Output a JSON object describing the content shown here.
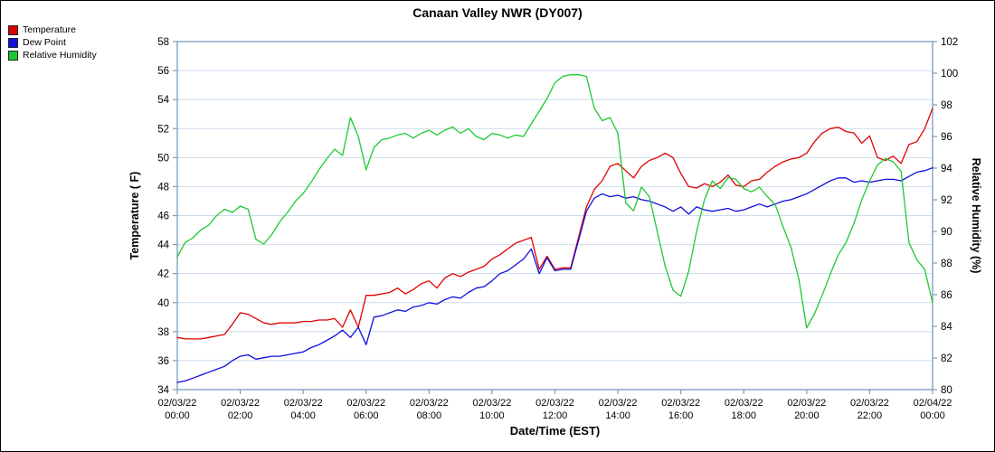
{
  "title": "Canaan Valley NWR (DY007)",
  "legend": [
    {
      "label": "Temperature",
      "color": "#e00000"
    },
    {
      "label": "Dew Point",
      "color": "#0f0fdd"
    },
    {
      "label": "Relative Humidity",
      "color": "#1ec832"
    }
  ],
  "chart_data": {
    "type": "line",
    "title": "Canaan Valley NWR (DY007)",
    "xlabel": "Date/Time (EST)",
    "ylabel_left": "Temperature ( F)",
    "ylabel_right": "Relative Humidity (%)",
    "x_unit_hours": 0.25,
    "x_range_hours": [
      0,
      24
    ],
    "y_left_axis": {
      "min": 34,
      "max": 58,
      "step": 2
    },
    "y_right_axis": {
      "min": 80,
      "max": 102,
      "step": 2
    },
    "grid": "horizontal",
    "legend_position": "top-left",
    "x_ticks": [
      {
        "hour": 0,
        "date": "02/03/22",
        "time": "00:00"
      },
      {
        "hour": 2,
        "date": "02/03/22",
        "time": "02:00"
      },
      {
        "hour": 4,
        "date": "02/03/22",
        "time": "04:00"
      },
      {
        "hour": 6,
        "date": "02/03/22",
        "time": "06:00"
      },
      {
        "hour": 8,
        "date": "02/03/22",
        "time": "08:00"
      },
      {
        "hour": 10,
        "date": "02/03/22",
        "time": "10:00"
      },
      {
        "hour": 12,
        "date": "02/03/22",
        "time": "12:00"
      },
      {
        "hour": 14,
        "date": "02/03/22",
        "time": "14:00"
      },
      {
        "hour": 16,
        "date": "02/03/22",
        "time": "16:00"
      },
      {
        "hour": 18,
        "date": "02/03/22",
        "time": "18:00"
      },
      {
        "hour": 20,
        "date": "02/03/22",
        "time": "20:00"
      },
      {
        "hour": 22,
        "date": "02/03/22",
        "time": "22:00"
      },
      {
        "hour": 24,
        "date": "02/04/22",
        "time": "00:00"
      }
    ],
    "series": [
      {
        "name": "Temperature",
        "axis": "left",
        "color": "#e00000",
        "values": [
          37.6,
          37.5,
          37.5,
          37.5,
          37.6,
          37.7,
          37.8,
          38.5,
          39.3,
          39.2,
          38.9,
          38.6,
          38.5,
          38.6,
          38.6,
          38.6,
          38.7,
          38.7,
          38.8,
          38.8,
          38.9,
          38.3,
          39.5,
          38.3,
          40.5,
          40.5,
          40.6,
          40.7,
          41.0,
          40.6,
          40.9,
          41.3,
          41.5,
          41.0,
          41.7,
          42.0,
          41.8,
          42.1,
          42.3,
          42.5,
          43.0,
          43.3,
          43.7,
          44.1,
          44.3,
          44.5,
          42.3,
          43.2,
          42.3,
          42.4,
          42.4,
          44.5,
          46.6,
          47.8,
          48.4,
          49.4,
          49.6,
          49.1,
          48.6,
          49.4,
          49.8,
          50.0,
          50.3,
          50.0,
          48.9,
          48.0,
          47.9,
          48.2,
          48.0,
          48.3,
          48.8,
          48.1,
          48.0,
          48.4,
          48.5,
          49.0,
          49.4,
          49.7,
          49.9,
          50.0,
          50.3,
          51.1,
          51.7,
          52.0,
          52.1,
          51.8,
          51.7,
          51.0,
          51.5,
          50.0,
          49.8,
          50.1,
          49.6,
          50.9,
          51.1,
          52.0,
          53.4
        ]
      },
      {
        "name": "Dew Point",
        "axis": "left",
        "color": "#0f0fdd",
        "values": [
          34.5,
          34.6,
          34.8,
          35.0,
          35.2,
          35.4,
          35.6,
          36.0,
          36.3,
          36.4,
          36.1,
          36.2,
          36.3,
          36.3,
          36.4,
          36.5,
          36.6,
          36.9,
          37.1,
          37.4,
          37.7,
          38.1,
          37.6,
          38.3,
          37.1,
          39.0,
          39.1,
          39.3,
          39.5,
          39.4,
          39.7,
          39.8,
          40.0,
          39.9,
          40.2,
          40.4,
          40.3,
          40.7,
          41.0,
          41.1,
          41.5,
          42.0,
          42.2,
          42.6,
          43.0,
          43.7,
          42.0,
          43.1,
          42.2,
          42.3,
          42.3,
          44.3,
          46.3,
          47.2,
          47.5,
          47.3,
          47.4,
          47.2,
          47.3,
          47.1,
          47.0,
          46.8,
          46.6,
          46.3,
          46.6,
          46.1,
          46.6,
          46.4,
          46.3,
          46.4,
          46.5,
          46.3,
          46.4,
          46.6,
          46.8,
          46.6,
          46.8,
          47.0,
          47.1,
          47.3,
          47.5,
          47.8,
          48.1,
          48.4,
          48.6,
          48.6,
          48.3,
          48.4,
          48.3,
          48.4,
          48.5,
          48.5,
          48.4,
          48.7,
          49.0,
          49.1,
          49.3
        ]
      },
      {
        "name": "Relative Humidity",
        "axis": "right",
        "color": "#1ec832",
        "values": [
          88.4,
          89.3,
          89.6,
          90.1,
          90.4,
          91.0,
          91.4,
          91.2,
          91.6,
          91.4,
          89.5,
          89.2,
          89.8,
          90.6,
          91.2,
          91.9,
          92.4,
          93.1,
          93.9,
          94.6,
          95.2,
          94.8,
          97.2,
          96.0,
          93.9,
          95.3,
          95.8,
          95.9,
          96.1,
          96.2,
          95.9,
          96.2,
          96.4,
          96.1,
          96.4,
          96.6,
          96.2,
          96.5,
          96.0,
          95.8,
          96.2,
          96.1,
          95.9,
          96.1,
          96.0,
          96.8,
          97.6,
          98.4,
          99.4,
          99.8,
          99.9,
          99.9,
          99.8,
          97.8,
          97.0,
          97.2,
          96.2,
          91.8,
          91.3,
          92.8,
          92.2,
          90.0,
          87.8,
          86.3,
          85.9,
          87.5,
          90.0,
          92.0,
          93.2,
          92.7,
          93.4,
          93.3,
          92.7,
          92.5,
          92.8,
          92.2,
          91.7,
          90.3,
          89.0,
          87.0,
          83.9,
          84.8,
          86.0,
          87.3,
          88.5,
          89.3,
          90.5,
          92.0,
          93.2,
          94.2,
          94.6,
          94.4,
          93.8,
          89.3,
          88.2,
          87.6,
          85.5
        ]
      }
    ]
  },
  "style": {
    "frame_color": "#7a9cbf",
    "grid_color": "#ccdcec",
    "text_color": "#000000"
  }
}
